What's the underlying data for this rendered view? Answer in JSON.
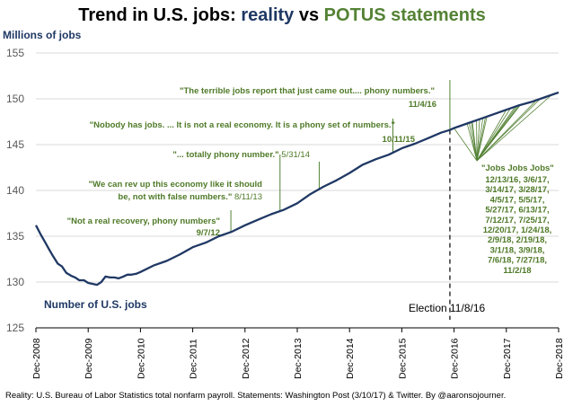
{
  "chart_data": {
    "type": "line",
    "title_parts": {
      "prefix": "Trend in U.S. jobs: ",
      "reality": "reality",
      "vs": " vs ",
      "potus": "POTUS statements"
    },
    "ylabel": "Millions of jobs",
    "ylim": [
      125,
      155
    ],
    "yticks": [
      125,
      130,
      135,
      140,
      145,
      150,
      155
    ],
    "xlim": [
      0,
      10
    ],
    "xtick_labels": [
      "Dec-2008",
      "Dec-2009",
      "Dec-2010",
      "Dec-2011",
      "Dec-2012",
      "Dec-2013",
      "Dec-2014",
      "Dec-2015",
      "Dec-2016",
      "Dec-2017",
      "Dec-2018"
    ],
    "grid": "horizontal",
    "series": [
      {
        "name": "Number of U.S. jobs",
        "x": [
          0,
          0.08,
          0.17,
          0.25,
          0.33,
          0.42,
          0.5,
          0.58,
          0.67,
          0.75,
          0.83,
          0.92,
          1.0,
          1.08,
          1.17,
          1.25,
          1.33,
          1.42,
          1.5,
          1.58,
          1.67,
          1.75,
          1.83,
          1.92,
          2.0,
          2.25,
          2.5,
          2.75,
          3.0,
          3.25,
          3.5,
          3.75,
          4.0,
          4.25,
          4.5,
          4.75,
          5.0,
          5.25,
          5.5,
          5.75,
          6.0,
          6.25,
          6.5,
          6.75,
          7.0,
          7.25,
          7.5,
          7.75,
          7.92,
          8.0,
          8.25,
          8.5,
          8.75,
          9.0,
          9.25,
          9.5,
          9.75,
          10.0
        ],
        "values": [
          136.2,
          135.3,
          134.4,
          133.6,
          132.8,
          132.0,
          131.7,
          131.0,
          130.7,
          130.5,
          130.2,
          130.2,
          129.9,
          129.8,
          129.7,
          130.0,
          130.6,
          130.5,
          130.5,
          130.4,
          130.6,
          130.8,
          130.8,
          130.9,
          131.1,
          131.8,
          132.3,
          133.0,
          133.8,
          134.3,
          135.0,
          135.5,
          136.2,
          136.8,
          137.4,
          137.9,
          138.6,
          139.6,
          140.4,
          141.1,
          141.9,
          142.8,
          143.4,
          143.9,
          144.6,
          145.1,
          145.7,
          146.3,
          146.6,
          146.8,
          147.3,
          147.8,
          148.3,
          148.8,
          149.3,
          149.7,
          150.2,
          150.7
        ],
        "color": "#1f3864"
      }
    ],
    "series_label": "Number of U.S. jobs",
    "statements_unfounded": [
      {
        "text": "\"Not a real recovery, phony numbers\"",
        "date": "9/7/12",
        "x": 3.73
      },
      {
        "text_line1": "\"We can rev up this economy like it should",
        "text_line2": "be, not with false numbers.\"",
        "date": "8/11/13",
        "x": 4.67
      },
      {
        "text": "\"... totally phony number.\"",
        "date": "5/31/14",
        "x": 5.42
      },
      {
        "text": "\"Nobody has jobs. ... It is not a real economy. It is a phony set of numbers.\"",
        "date": "10/11/15",
        "x": 6.83
      },
      {
        "text": "\"The terrible jobs report that just came out.... phony numbers.\"",
        "date": "11/4/16",
        "x": 7.92
      }
    ],
    "election": {
      "label": "Election 11/8/16",
      "x": 7.92
    },
    "jobs_statement": {
      "text": "\"Jobs Jobs Jobs\"",
      "dates_lines": [
        "12/13/16, 3/6/17,",
        "3/14/17, 3/28/17,",
        "4/5/17, 5/5/17,",
        "5/27/17, 6/13/17,",
        "7/12/17, 7/25/17,",
        "12/20/17, 1/24/18,",
        "2/9/18, 2/19/18,",
        "3/1/18, 3/9/18,",
        "7/6/18, 7/27/18,",
        "11/2/18"
      ],
      "dates_x": [
        8.0,
        8.25,
        8.29,
        8.33,
        8.35,
        8.43,
        8.49,
        8.55,
        8.6,
        8.63,
        9.0,
        9.08,
        9.17,
        9.21,
        9.25,
        9.27,
        9.58,
        9.65,
        9.87
      ]
    },
    "colors": {
      "reality": "#1f3864",
      "potus": "#548235",
      "grid": "#d9d9d9",
      "axis": "#000000"
    }
  },
  "source_note": "Reality: U.S. Bureau of Labor Statistics total nonfarm payroll. Statements: Washington Post (3/10/17) & Twitter. By @aaronsojourner."
}
